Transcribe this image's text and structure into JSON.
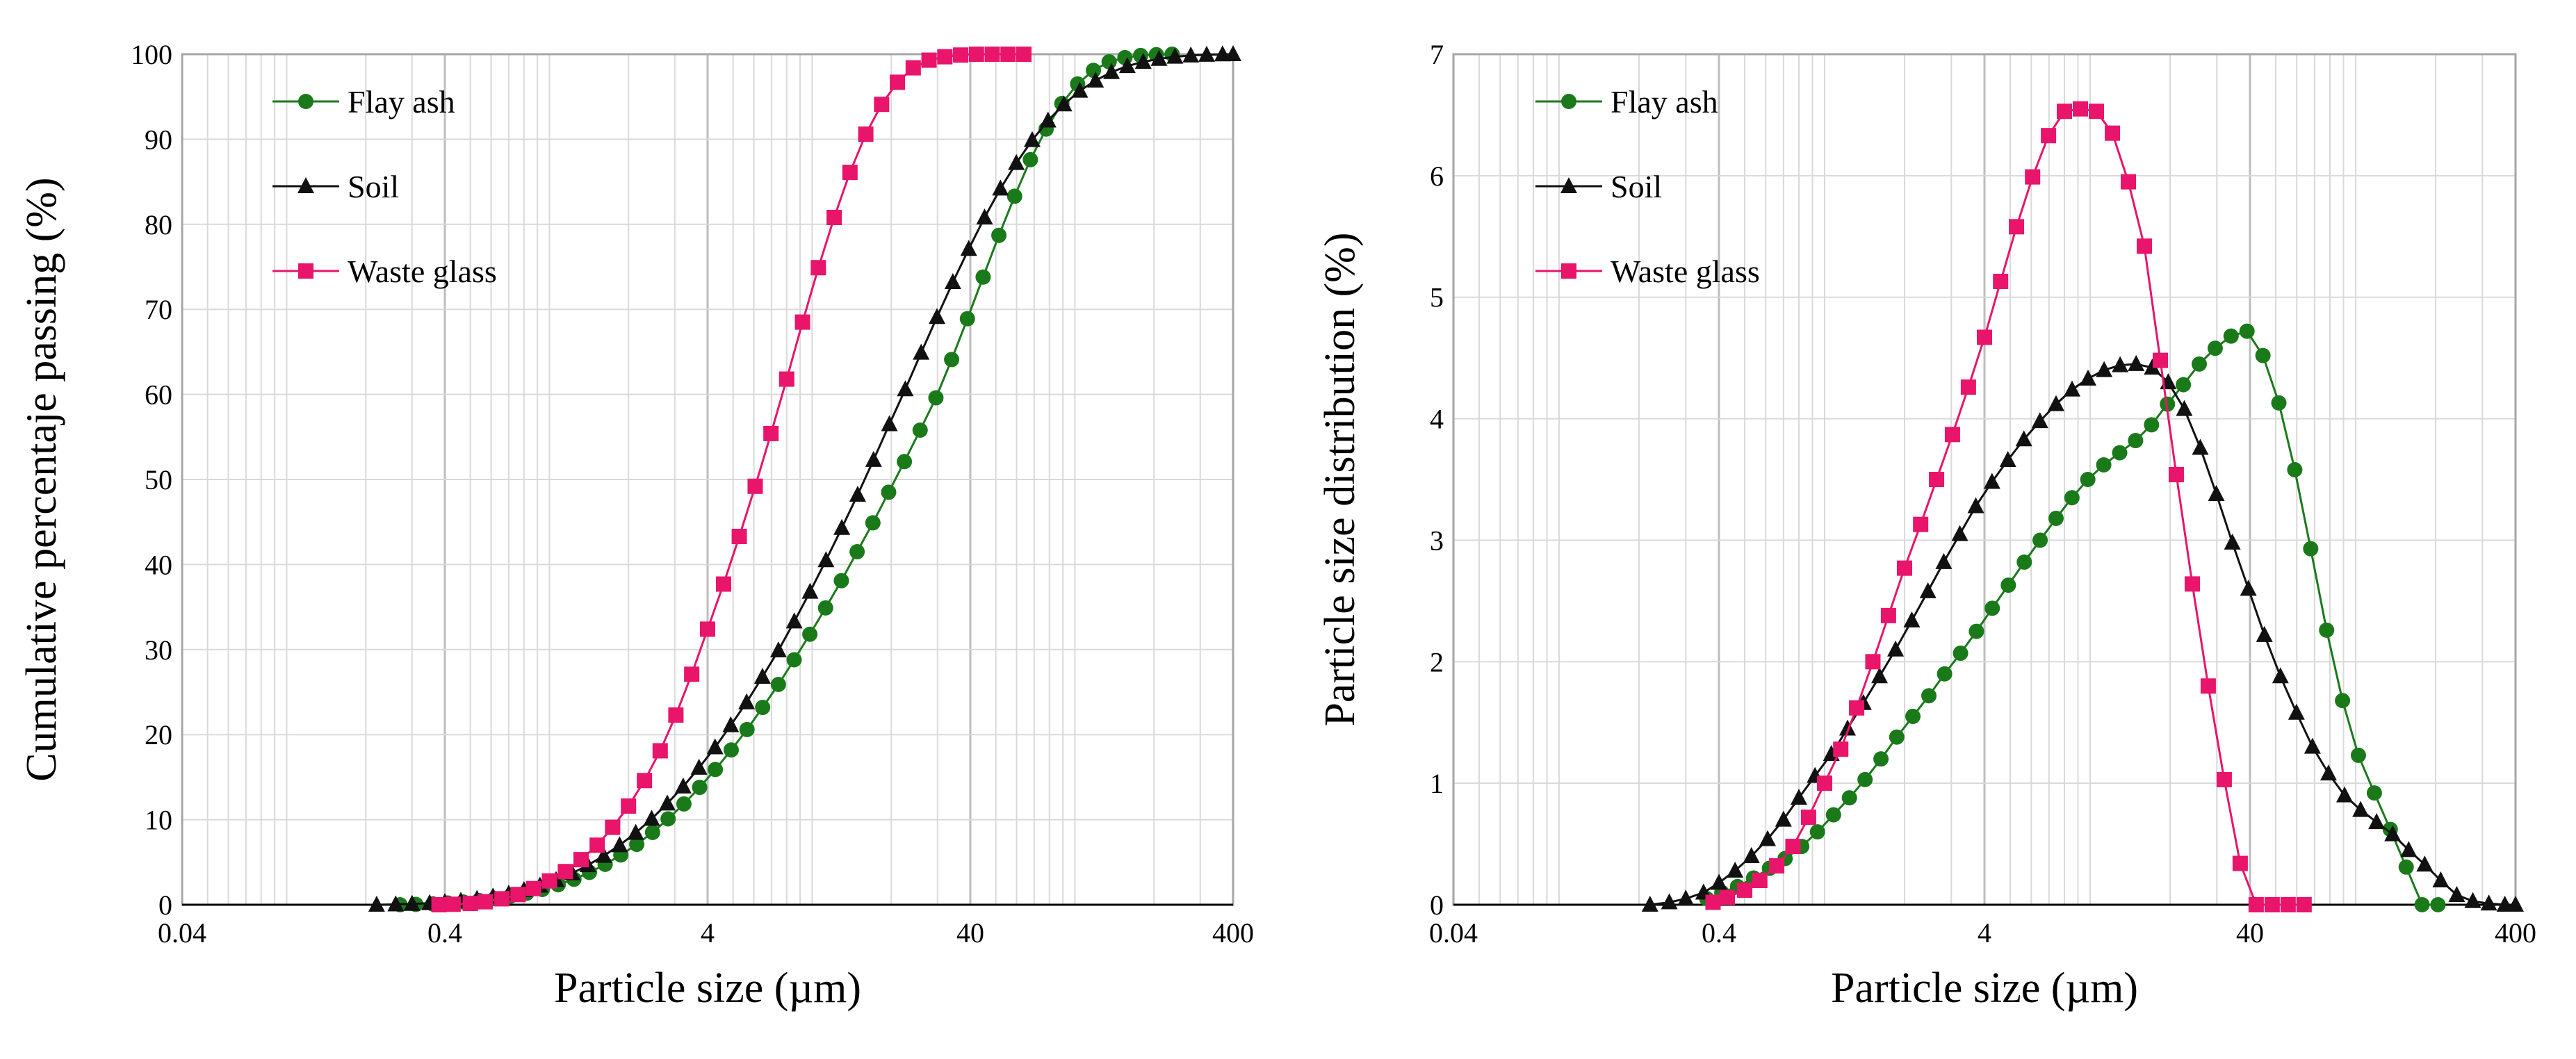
{
  "chart_data": [
    {
      "type": "line",
      "xscale": "log",
      "xlim": [
        0.04,
        400
      ],
      "ylim": [
        0,
        100
      ],
      "xticks": [
        0.04,
        0.4,
        4,
        40,
        400
      ],
      "xtick_labels": [
        "0.04",
        "0.4",
        "4",
        "40",
        "400"
      ],
      "yticks": [
        0,
        10,
        20,
        30,
        40,
        50,
        60,
        70,
        80,
        90,
        100
      ],
      "ytick_labels": [
        "0",
        "10",
        "20",
        "30",
        "40",
        "50",
        "60",
        "70",
        "80",
        "90",
        "100"
      ],
      "xlabel": "Particle size (µm)",
      "ylabel": "Cumulative percentaje passing (%)",
      "grid": true,
      "legend_position": "top-left",
      "series": [
        {
          "name": "Flay ash",
          "color": "#1a7a1a",
          "marker": "circle",
          "x": [
            0.27,
            0.31,
            0.36,
            0.41,
            0.47,
            0.54,
            0.62,
            0.71,
            0.82,
            0.94,
            1.08,
            1.24,
            1.42,
            1.63,
            1.87,
            2.15,
            2.47,
            2.83,
            3.25,
            3.73,
            4.28,
            4.92,
            5.65,
            6.48,
            7.44,
            8.54,
            9.8,
            11.25,
            12.92,
            14.83,
            17.03,
            19.55,
            22.44,
            25.76,
            29.58,
            33.95,
            38.98,
            44.75,
            51.37,
            58.97,
            67.7,
            77.72,
            89.22,
            102.4,
            117.6,
            135.0,
            155.0,
            177.9,
            204.2,
            234.4
          ],
          "y": [
            0,
            0.04,
            0.1,
            0.2,
            0.32,
            0.5,
            0.72,
            1,
            1.35,
            1.8,
            2.35,
            3,
            3.8,
            4.75,
            5.85,
            7.1,
            8.5,
            10.1,
            11.85,
            13.8,
            15.9,
            18.2,
            20.6,
            23.2,
            25.9,
            28.8,
            31.8,
            34.9,
            38.1,
            41.5,
            44.9,
            48.5,
            52.1,
            55.8,
            59.6,
            64.1,
            68.9,
            73.8,
            78.7,
            83.3,
            87.6,
            91.2,
            94.2,
            96.5,
            98.1,
            99.1,
            99.6,
            99.85,
            99.95,
            100
          ]
        },
        {
          "name": "Soil",
          "color": "#111111",
          "marker": "triangle",
          "x": [
            0.22,
            0.26,
            0.3,
            0.35,
            0.4,
            0.46,
            0.53,
            0.61,
            0.7,
            0.8,
            0.92,
            1.06,
            1.22,
            1.4,
            1.61,
            1.85,
            2.13,
            2.45,
            2.81,
            3.23,
            3.71,
            4.27,
            4.9,
            5.63,
            6.47,
            7.44,
            8.55,
            9.82,
            11.29,
            12.97,
            14.9,
            17.13,
            19.68,
            22.62,
            25.99,
            29.87,
            34.32,
            39.44,
            45.32,
            52.08,
            59.85,
            68.77,
            79.03,
            90.82,
            104.4,
            119.9,
            137.8,
            158.4,
            182.0,
            209.1,
            240.3,
            276.2,
            317.4,
            364.7,
            400
          ],
          "y": [
            0,
            0.04,
            0.1,
            0.18,
            0.3,
            0.46,
            0.68,
            0.96,
            1.3,
            1.72,
            2.25,
            2.9,
            3.7,
            4.65,
            5.75,
            7,
            8.45,
            10.1,
            11.9,
            13.9,
            16.1,
            18.5,
            21.1,
            23.8,
            26.8,
            29.9,
            33.3,
            36.8,
            40.5,
            44.3,
            48.2,
            52.3,
            56.5,
            60.6,
            64.9,
            69.1,
            73.2,
            77.1,
            80.8,
            84.2,
            87.2,
            89.9,
            92.2,
            94.1,
            95.7,
            96.9,
            97.9,
            98.6,
            99.1,
            99.45,
            99.7,
            99.85,
            99.93,
            99.98,
            100
          ]
        },
        {
          "name": "Waste glass",
          "color": "#e8156b",
          "marker": "square",
          "x": [
            0.38,
            0.43,
            0.5,
            0.57,
            0.66,
            0.76,
            0.87,
            1.0,
            1.15,
            1.32,
            1.52,
            1.74,
            2.0,
            2.3,
            2.64,
            3.03,
            3.48,
            4.0,
            4.6,
            5.28,
            6.07,
            6.97,
            8.0,
            9.19,
            10.56,
            12.13,
            13.93,
            16.0,
            18.38,
            21.11,
            24.25,
            27.85,
            31.99,
            36.74,
            42.2,
            48.47,
            55.67,
            63.94
          ],
          "y": [
            0,
            0.05,
            0.15,
            0.35,
            0.7,
            1.2,
            1.9,
            2.8,
            3.9,
            5.3,
            7.0,
            9.1,
            11.6,
            14.6,
            18.1,
            22.3,
            27.1,
            32.4,
            37.7,
            43.3,
            49.2,
            55.4,
            61.8,
            68.5,
            74.9,
            80.8,
            86.1,
            90.6,
            94.1,
            96.7,
            98.4,
            99.3,
            99.7,
            99.9,
            100,
            100,
            100,
            100
          ]
        }
      ]
    },
    {
      "type": "line",
      "xscale": "log",
      "xlim": [
        0.04,
        400
      ],
      "ylim": [
        0,
        7
      ],
      "xticks": [
        0.04,
        0.4,
        4,
        40,
        400
      ],
      "xtick_labels": [
        "0.04",
        "0.4",
        "4",
        "40",
        "400"
      ],
      "yticks": [
        0,
        1,
        2,
        3,
        4,
        5,
        6,
        7
      ],
      "ytick_labels": [
        "0",
        "1",
        "2",
        "3",
        "4",
        "5",
        "6",
        "7"
      ],
      "xlabel": "Particle size (µm)",
      "ylabel": "Particle size distribution (%)",
      "grid": true,
      "legend_position": "top-left",
      "series": [
        {
          "name": "Flay ash",
          "color": "#1a7a1a",
          "marker": "circle",
          "x": [
            0.36,
            0.41,
            0.47,
            0.54,
            0.62,
            0.71,
            0.82,
            0.94,
            1.08,
            1.24,
            1.42,
            1.63,
            1.87,
            2.15,
            2.47,
            2.83,
            3.25,
            3.73,
            4.28,
            4.92,
            5.65,
            6.48,
            7.44,
            8.54,
            9.8,
            11.25,
            12.92,
            14.83,
            17.03,
            19.55,
            22.44,
            25.76,
            29.58,
            33.95,
            38.98,
            44.75,
            51.37,
            58.97,
            67.7,
            77.72,
            89.22,
            102.4,
            117.6,
            135.0,
            155.0,
            177.9,
            204.2
          ],
          "y": [
            0.05,
            0.1,
            0.15,
            0.22,
            0.3,
            0.38,
            0.48,
            0.6,
            0.74,
            0.88,
            1.03,
            1.2,
            1.38,
            1.55,
            1.72,
            1.9,
            2.07,
            2.25,
            2.44,
            2.63,
            2.82,
            3.0,
            3.18,
            3.35,
            3.5,
            3.62,
            3.72,
            3.82,
            3.95,
            4.12,
            4.28,
            4.45,
            4.58,
            4.68,
            4.72,
            4.52,
            4.13,
            3.58,
            2.93,
            2.26,
            1.68,
            1.23,
            0.92,
            0.62,
            0.31,
            0.0,
            0.0
          ]
        },
        {
          "name": "Soil",
          "color": "#111111",
          "marker": "triangle",
          "x": [
            0.22,
            0.26,
            0.3,
            0.35,
            0.4,
            0.46,
            0.53,
            0.61,
            0.7,
            0.8,
            0.92,
            1.06,
            1.22,
            1.4,
            1.61,
            1.85,
            2.13,
            2.45,
            2.81,
            3.23,
            3.71,
            4.27,
            4.9,
            5.63,
            6.47,
            7.44,
            8.55,
            9.82,
            11.29,
            12.97,
            14.9,
            17.13,
            19.68,
            22.62,
            25.99,
            29.87,
            34.32,
            39.44,
            45.32,
            52.08,
            59.85,
            68.77,
            79.03,
            90.82,
            104.4,
            119.9,
            137.8,
            158.4,
            182.0,
            209.1,
            240.3,
            276.2,
            317.4,
            364.7,
            400
          ],
          "y": [
            0,
            0.02,
            0.05,
            0.1,
            0.18,
            0.28,
            0.4,
            0.54,
            0.7,
            0.88,
            1.06,
            1.24,
            1.45,
            1.66,
            1.88,
            2.1,
            2.34,
            2.58,
            2.82,
            3.05,
            3.28,
            3.48,
            3.66,
            3.83,
            3.98,
            4.12,
            4.24,
            4.33,
            4.4,
            4.44,
            4.45,
            4.42,
            4.3,
            4.08,
            3.76,
            3.38,
            2.98,
            2.6,
            2.22,
            1.88,
            1.58,
            1.3,
            1.08,
            0.9,
            0.78,
            0.68,
            0.58,
            0.45,
            0.33,
            0.2,
            0.08,
            0.03,
            0.01,
            0.0,
            0.0
          ]
        },
        {
          "name": "Waste glass",
          "color": "#e8156b",
          "marker": "square",
          "x": [
            0.38,
            0.43,
            0.5,
            0.57,
            0.66,
            0.76,
            0.87,
            1.0,
            1.15,
            1.32,
            1.52,
            1.74,
            2.0,
            2.3,
            2.64,
            3.03,
            3.48,
            4.0,
            4.6,
            5.28,
            6.07,
            6.97,
            8.0,
            9.19,
            10.56,
            12.13,
            13.93,
            16.0,
            18.38,
            21.11,
            24.25,
            27.85,
            31.99,
            36.74,
            42.2,
            48.47,
            55.67,
            63.94
          ],
          "y": [
            0.02,
            0.06,
            0.12,
            0.2,
            0.32,
            0.48,
            0.72,
            1.0,
            1.28,
            1.62,
            2.0,
            2.38,
            2.77,
            3.13,
            3.5,
            3.87,
            4.26,
            4.67,
            5.13,
            5.58,
            5.99,
            6.33,
            6.53,
            6.55,
            6.53,
            6.35,
            5.95,
            5.42,
            4.48,
            3.54,
            2.64,
            1.8,
            1.03,
            0.34,
            0.0,
            0.0,
            0.0,
            0.0
          ]
        }
      ]
    }
  ]
}
